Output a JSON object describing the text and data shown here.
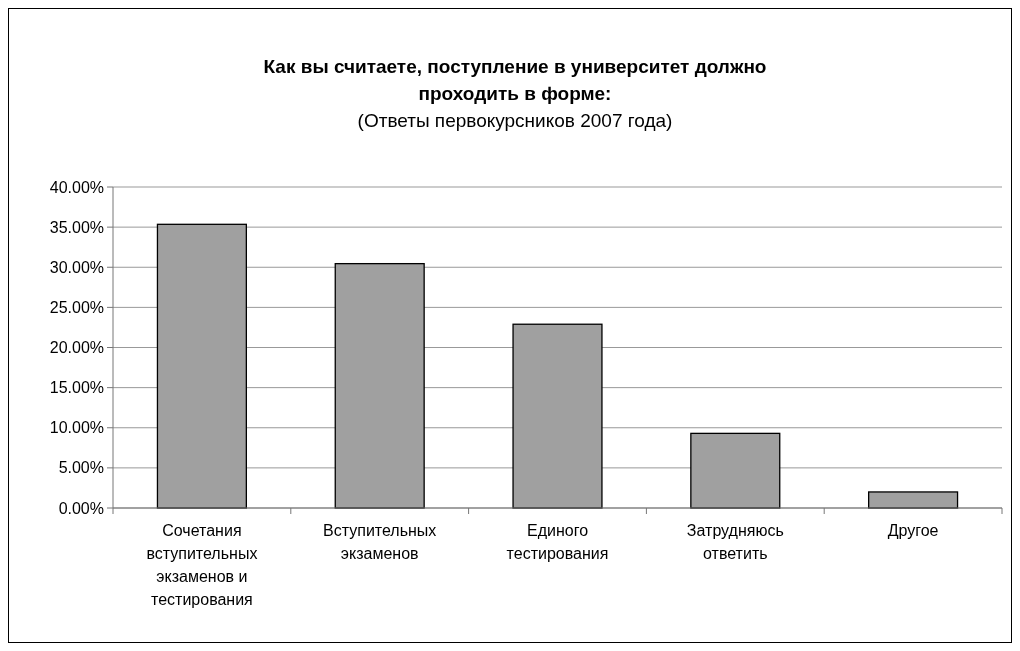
{
  "chart_data": {
    "type": "bar",
    "title": "Как вы считаете, поступление в университет должно проходить в форме:",
    "subtitle": "(Ответы первокурсников 2007 года)",
    "categories": [
      "Сочетания вступительных экзаменов и тестирования",
      "Вступительных экзаменов",
      "Единого тестирования",
      "Затрудняюсь ответить",
      "Другое"
    ],
    "values": [
      35.35,
      30.45,
      22.9,
      9.3,
      2.0
    ],
    "color": "#a0a0a0",
    "ylim": [
      0,
      40
    ],
    "yticks": [
      {
        "value": 0,
        "label": "0.00%"
      },
      {
        "value": 5,
        "label": "5.00%"
      },
      {
        "value": 10,
        "label": "10.00%"
      },
      {
        "value": 15,
        "label": "15.00%"
      },
      {
        "value": 20,
        "label": "20.00%"
      },
      {
        "value": 25,
        "label": "25.00%"
      },
      {
        "value": 30,
        "label": "30.00%"
      },
      {
        "value": 35,
        "label": "35.00%"
      },
      {
        "value": 40,
        "label": "40.00%"
      }
    ],
    "grid": "y"
  }
}
